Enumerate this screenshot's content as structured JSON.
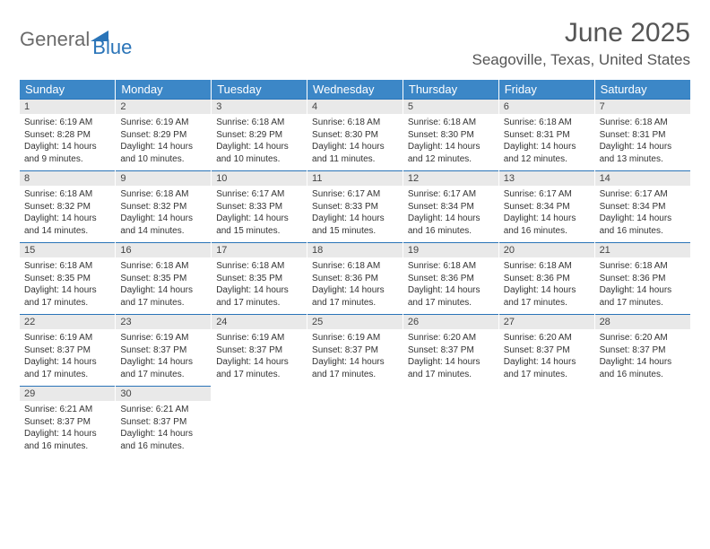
{
  "logo": {
    "word1": "General",
    "word2": "Blue"
  },
  "header": {
    "month_title": "June 2025",
    "location": "Seagoville, Texas, United States"
  },
  "colors": {
    "header_bg": "#3c87c7",
    "accent": "#2a74b8",
    "daynum_bg": "#e9e9e9"
  },
  "day_names": [
    "Sunday",
    "Monday",
    "Tuesday",
    "Wednesday",
    "Thursday",
    "Friday",
    "Saturday"
  ],
  "weeks": [
    {
      "nums": [
        "1",
        "2",
        "3",
        "4",
        "5",
        "6",
        "7"
      ],
      "cells": [
        {
          "sunrise": "Sunrise: 6:19 AM",
          "sunset": "Sunset: 8:28 PM",
          "daylight": "Daylight: 14 hours and 9 minutes."
        },
        {
          "sunrise": "Sunrise: 6:19 AM",
          "sunset": "Sunset: 8:29 PM",
          "daylight": "Daylight: 14 hours and 10 minutes."
        },
        {
          "sunrise": "Sunrise: 6:18 AM",
          "sunset": "Sunset: 8:29 PM",
          "daylight": "Daylight: 14 hours and 10 minutes."
        },
        {
          "sunrise": "Sunrise: 6:18 AM",
          "sunset": "Sunset: 8:30 PM",
          "daylight": "Daylight: 14 hours and 11 minutes."
        },
        {
          "sunrise": "Sunrise: 6:18 AM",
          "sunset": "Sunset: 8:30 PM",
          "daylight": "Daylight: 14 hours and 12 minutes."
        },
        {
          "sunrise": "Sunrise: 6:18 AM",
          "sunset": "Sunset: 8:31 PM",
          "daylight": "Daylight: 14 hours and 12 minutes."
        },
        {
          "sunrise": "Sunrise: 6:18 AM",
          "sunset": "Sunset: 8:31 PM",
          "daylight": "Daylight: 14 hours and 13 minutes."
        }
      ]
    },
    {
      "nums": [
        "8",
        "9",
        "10",
        "11",
        "12",
        "13",
        "14"
      ],
      "cells": [
        {
          "sunrise": "Sunrise: 6:18 AM",
          "sunset": "Sunset: 8:32 PM",
          "daylight": "Daylight: 14 hours and 14 minutes."
        },
        {
          "sunrise": "Sunrise: 6:18 AM",
          "sunset": "Sunset: 8:32 PM",
          "daylight": "Daylight: 14 hours and 14 minutes."
        },
        {
          "sunrise": "Sunrise: 6:17 AM",
          "sunset": "Sunset: 8:33 PM",
          "daylight": "Daylight: 14 hours and 15 minutes."
        },
        {
          "sunrise": "Sunrise: 6:17 AM",
          "sunset": "Sunset: 8:33 PM",
          "daylight": "Daylight: 14 hours and 15 minutes."
        },
        {
          "sunrise": "Sunrise: 6:17 AM",
          "sunset": "Sunset: 8:34 PM",
          "daylight": "Daylight: 14 hours and 16 minutes."
        },
        {
          "sunrise": "Sunrise: 6:17 AM",
          "sunset": "Sunset: 8:34 PM",
          "daylight": "Daylight: 14 hours and 16 minutes."
        },
        {
          "sunrise": "Sunrise: 6:17 AM",
          "sunset": "Sunset: 8:34 PM",
          "daylight": "Daylight: 14 hours and 16 minutes."
        }
      ]
    },
    {
      "nums": [
        "15",
        "16",
        "17",
        "18",
        "19",
        "20",
        "21"
      ],
      "cells": [
        {
          "sunrise": "Sunrise: 6:18 AM",
          "sunset": "Sunset: 8:35 PM",
          "daylight": "Daylight: 14 hours and 17 minutes."
        },
        {
          "sunrise": "Sunrise: 6:18 AM",
          "sunset": "Sunset: 8:35 PM",
          "daylight": "Daylight: 14 hours and 17 minutes."
        },
        {
          "sunrise": "Sunrise: 6:18 AM",
          "sunset": "Sunset: 8:35 PM",
          "daylight": "Daylight: 14 hours and 17 minutes."
        },
        {
          "sunrise": "Sunrise: 6:18 AM",
          "sunset": "Sunset: 8:36 PM",
          "daylight": "Daylight: 14 hours and 17 minutes."
        },
        {
          "sunrise": "Sunrise: 6:18 AM",
          "sunset": "Sunset: 8:36 PM",
          "daylight": "Daylight: 14 hours and 17 minutes."
        },
        {
          "sunrise": "Sunrise: 6:18 AM",
          "sunset": "Sunset: 8:36 PM",
          "daylight": "Daylight: 14 hours and 17 minutes."
        },
        {
          "sunrise": "Sunrise: 6:18 AM",
          "sunset": "Sunset: 8:36 PM",
          "daylight": "Daylight: 14 hours and 17 minutes."
        }
      ]
    },
    {
      "nums": [
        "22",
        "23",
        "24",
        "25",
        "26",
        "27",
        "28"
      ],
      "cells": [
        {
          "sunrise": "Sunrise: 6:19 AM",
          "sunset": "Sunset: 8:37 PM",
          "daylight": "Daylight: 14 hours and 17 minutes."
        },
        {
          "sunrise": "Sunrise: 6:19 AM",
          "sunset": "Sunset: 8:37 PM",
          "daylight": "Daylight: 14 hours and 17 minutes."
        },
        {
          "sunrise": "Sunrise: 6:19 AM",
          "sunset": "Sunset: 8:37 PM",
          "daylight": "Daylight: 14 hours and 17 minutes."
        },
        {
          "sunrise": "Sunrise: 6:19 AM",
          "sunset": "Sunset: 8:37 PM",
          "daylight": "Daylight: 14 hours and 17 minutes."
        },
        {
          "sunrise": "Sunrise: 6:20 AM",
          "sunset": "Sunset: 8:37 PM",
          "daylight": "Daylight: 14 hours and 17 minutes."
        },
        {
          "sunrise": "Sunrise: 6:20 AM",
          "sunset": "Sunset: 8:37 PM",
          "daylight": "Daylight: 14 hours and 17 minutes."
        },
        {
          "sunrise": "Sunrise: 6:20 AM",
          "sunset": "Sunset: 8:37 PM",
          "daylight": "Daylight: 14 hours and 16 minutes."
        }
      ]
    },
    {
      "nums": [
        "29",
        "30",
        "",
        "",
        "",
        "",
        ""
      ],
      "cells": [
        {
          "sunrise": "Sunrise: 6:21 AM",
          "sunset": "Sunset: 8:37 PM",
          "daylight": "Daylight: 14 hours and 16 minutes."
        },
        {
          "sunrise": "Sunrise: 6:21 AM",
          "sunset": "Sunset: 8:37 PM",
          "daylight": "Daylight: 14 hours and 16 minutes."
        },
        null,
        null,
        null,
        null,
        null
      ]
    }
  ]
}
